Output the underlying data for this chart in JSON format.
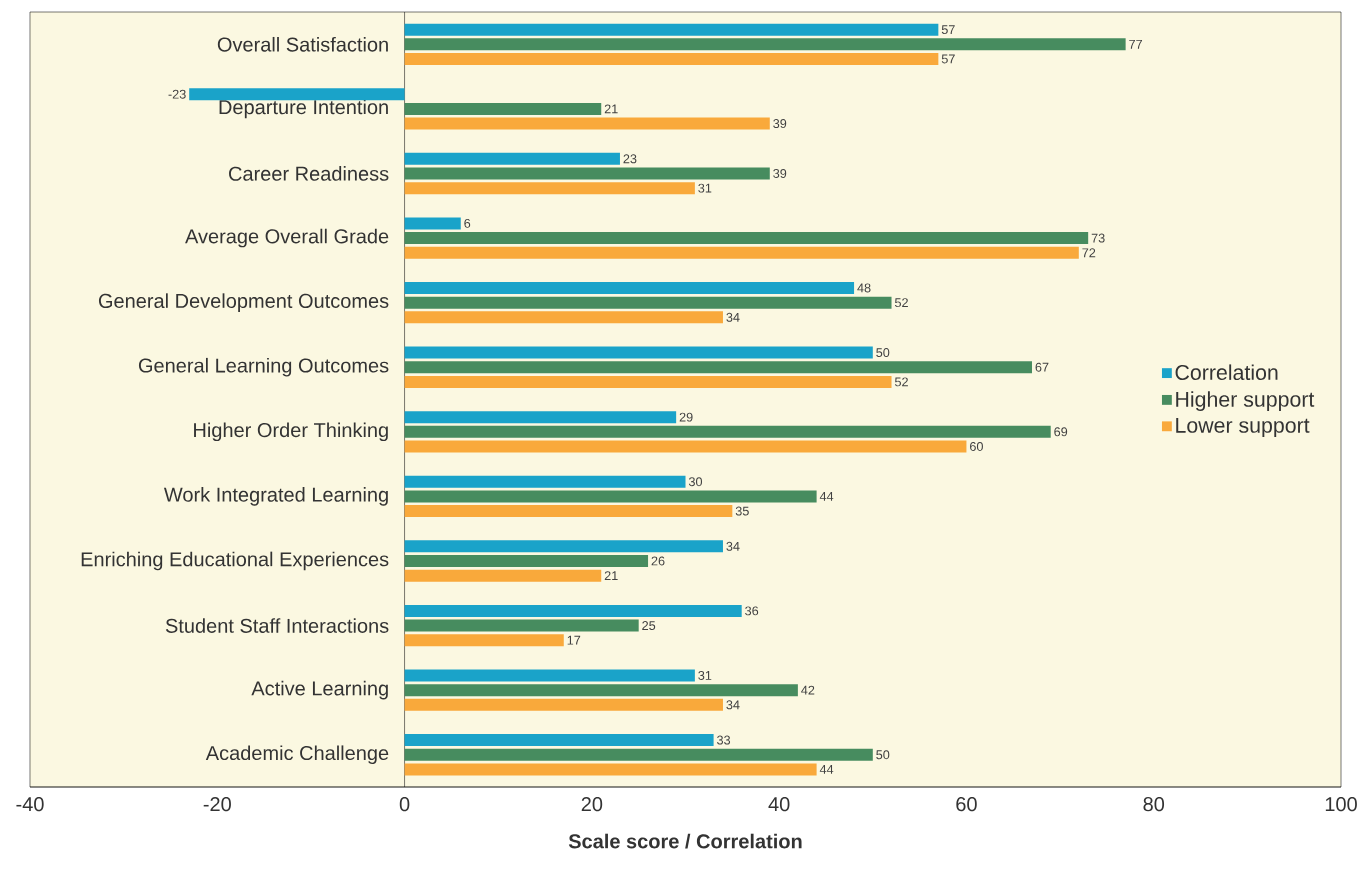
{
  "chart_data": {
    "type": "bar",
    "orientation": "horizontal",
    "xlabel": "Scale score / Correlation",
    "categories": [
      "Overall Satisfaction",
      "Departure Intention",
      "Career Readiness",
      "Average Overall Grade",
      "General Development Outcomes",
      "General Learning Outcomes",
      "Higher Order Thinking",
      "Work Integrated Learning",
      "Enriching Educational Experiences",
      "Student Staff Interactions",
      "Active Learning",
      "Academic Challenge"
    ],
    "series": [
      {
        "name": "Correlation",
        "color": "#1aa3c9",
        "values": [
          57,
          -23,
          23,
          6,
          48,
          50,
          29,
          30,
          34,
          36,
          31,
          33
        ]
      },
      {
        "name": "Higher support",
        "color": "#478c5f",
        "values": [
          77,
          21,
          39,
          73,
          52,
          67,
          69,
          44,
          26,
          25,
          42,
          50
        ]
      },
      {
        "name": "Lower support",
        "color": "#f9a93b",
        "values": [
          57,
          39,
          31,
          72,
          34,
          52,
          60,
          35,
          21,
          17,
          34,
          44
        ]
      }
    ],
    "xlim": [
      -40,
      100
    ],
    "xticks": [
      -40,
      -20,
      0,
      20,
      40,
      60,
      80,
      100
    ],
    "data_labels": true,
    "legend": "right"
  }
}
